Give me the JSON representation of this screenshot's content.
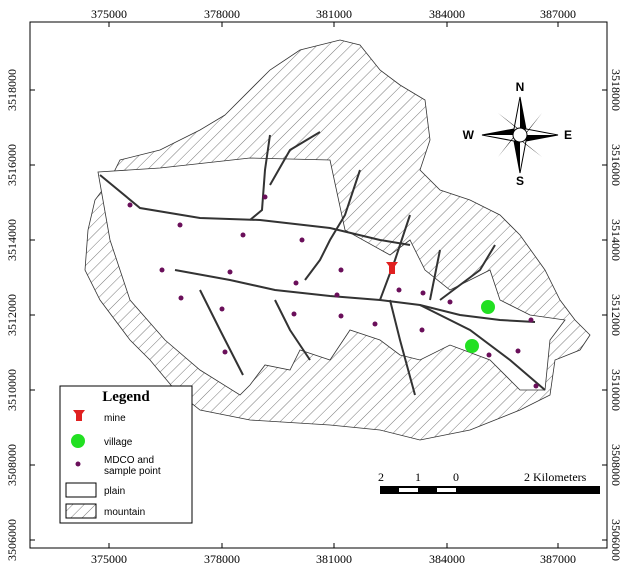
{
  "map": {
    "x_labels": [
      375000,
      378000,
      381000,
      384000,
      387000
    ],
    "y_labels": [
      3518000,
      3516000,
      3514000,
      3512000,
      3510000,
      3508000,
      3506000
    ],
    "compass": {
      "n": "N",
      "e": "E",
      "s": "S",
      "w": "W"
    },
    "legend": {
      "title": "Legend",
      "items": [
        "mine",
        "village",
        [
          "MDCO and",
          "sample point"
        ],
        "plain",
        "mountain"
      ]
    },
    "scale_bar": {
      "labels": [
        "2",
        "1",
        "0",
        "2 Kilometers"
      ]
    }
  }
}
